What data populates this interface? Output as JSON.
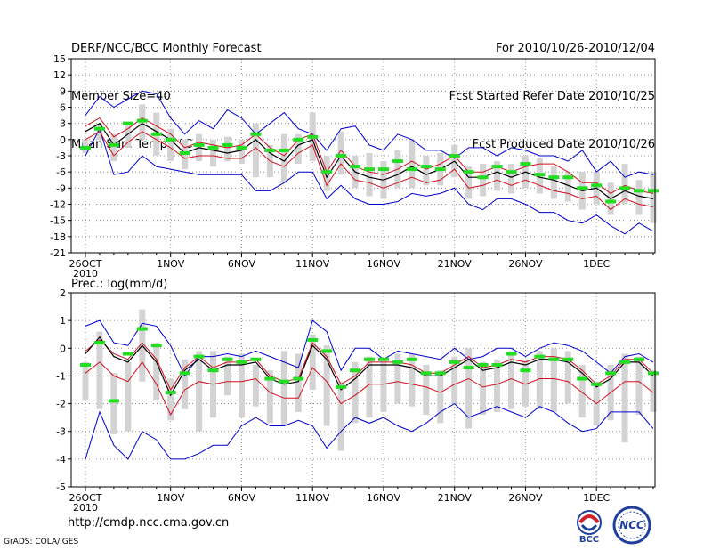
{
  "header": {
    "left": [
      "DERF/NCC/BCC Monthly Forecast",
      "Member Size=40",
      "Mean Surf. Temp.: °C"
    ],
    "right": [
      "For 2010/10/26-2010/12/04",
      "Fcst Started Refer Date 2010/10/25",
      "Fcst Produced Date 2010/10/26"
    ]
  },
  "footer": {
    "url": "http://cmdp.ncc.cma.gov.cn",
    "credit": "GrADS: COLA/IGES",
    "logo_bcc": "BCC",
    "logo_ncc": "NCC"
  },
  "colors": {
    "ensemble_range": "#0000cc",
    "mean": "#000000",
    "spread": "#d01020",
    "box": "#d3d3d3",
    "median": "#22dd22",
    "grid": "#777777"
  },
  "chart_data": [
    {
      "type": "line",
      "title": "Mean Surf. Temp.: °C",
      "x_day_count": 40,
      "xtick_days": [
        0,
        6,
        11,
        16,
        21,
        26,
        31,
        36
      ],
      "xtick_labels": [
        "26OCT",
        "1NOV",
        "6NOV",
        "11NOV",
        "16NOV",
        "21NOV",
        "26NOV",
        "1DEC"
      ],
      "xtick_sublabel": "2010",
      "ylim": [
        -21,
        15
      ],
      "yticks": [
        -21,
        -18,
        -15,
        -12,
        -9,
        -6,
        -3,
        0,
        3,
        6,
        9,
        12,
        15
      ],
      "series": {
        "max": [
          4.5,
          8,
          6,
          7.5,
          9,
          8.5,
          4,
          1,
          3.5,
          2,
          5.5,
          4,
          1,
          3,
          5,
          2,
          1,
          -2,
          2,
          2.5,
          -1,
          -2,
          1,
          0,
          -2,
          -2,
          -3.5,
          -1.5,
          -1.5,
          -3,
          -1.5,
          -2,
          -3,
          -3,
          -4,
          -2,
          -6,
          -4,
          -7,
          -6,
          -6.5
        ],
        "mean": [
          1.5,
          3,
          -1,
          1,
          3,
          1.5,
          0,
          -2.5,
          -1.5,
          -2,
          -2.5,
          -2,
          0,
          -2.5,
          -4,
          -1,
          0,
          -7,
          -3,
          -6,
          -7,
          -7.5,
          -6.5,
          -5,
          -6.5,
          -5.5,
          -4,
          -7,
          -7,
          -6,
          -7,
          -6,
          -7,
          -7.5,
          -8.5,
          -9.5,
          -9,
          -11,
          -9.5,
          -10.5,
          -11
        ],
        "upper": [
          2.5,
          4,
          0.5,
          2,
          4,
          2.5,
          1,
          -1.5,
          -0.5,
          -1,
          -1.5,
          -1,
          1,
          -1.5,
          -3,
          0,
          1,
          -6,
          -2,
          -5,
          -6,
          -6.5,
          -5.5,
          -4,
          -5.5,
          -4.5,
          -3,
          -6,
          -6,
          -5,
          -6,
          -5,
          -4.5,
          -4.5,
          -6,
          -8,
          -8,
          -10,
          -8.5,
          -9.5,
          -10
        ],
        "lower": [
          0,
          1.5,
          -3,
          -0.5,
          1.5,
          0,
          -1.5,
          -3.5,
          -3,
          -3,
          -3.5,
          -3.5,
          -1.5,
          -4,
          -5,
          -2.5,
          -1,
          -8.5,
          -4.5,
          -7.5,
          -8,
          -9,
          -8,
          -7,
          -8,
          -7.5,
          -5.5,
          -9,
          -8.5,
          -7.5,
          -8.5,
          -7.5,
          -8.5,
          -9.5,
          -10,
          -11,
          -10.5,
          -13,
          -11,
          -12,
          -12.5
        ],
        "min": [
          -3,
          2,
          -6.5,
          -6,
          -3,
          -5,
          -5.5,
          -6,
          -6.5,
          -6.5,
          -6.5,
          -6.5,
          -9.5,
          -9.5,
          -8,
          -6,
          -6,
          -11,
          -8.5,
          -11,
          -12,
          -12,
          -11.5,
          -10,
          -10.5,
          -10,
          -9,
          -12,
          -13,
          -11,
          -11,
          -12,
          -13.5,
          -13.5,
          -15,
          -15.5,
          -14,
          -16,
          -17.5,
          -15.5,
          -17
        ],
        "box_high": [
          0,
          3,
          1,
          3,
          6.5,
          5,
          2,
          0,
          1,
          0,
          0.5,
          0,
          3,
          -1,
          1,
          1,
          5,
          -3,
          1.5,
          -3,
          -2.5,
          -4,
          -2,
          0,
          -3,
          -2.5,
          -1,
          -5,
          -4.5,
          -4,
          -4.5,
          -3,
          -3.5,
          -5,
          -6,
          -6,
          -6,
          -8,
          -4.5,
          -7.5,
          -6
        ],
        "box_low": [
          -2.5,
          0,
          -4,
          -1.5,
          0,
          -3,
          -4,
          -5.5,
          -4,
          -5,
          -4,
          -4.5,
          -7,
          -7,
          -8,
          -4.5,
          -4,
          -9.5,
          -6.5,
          -9,
          -10.5,
          -11,
          -9,
          -9,
          -8.5,
          -8.5,
          -7,
          -11,
          -10.5,
          -9.5,
          -10,
          -9,
          -10,
          -11,
          -11.5,
          -13,
          -12,
          -14,
          -12,
          -14,
          -15.5
        ],
        "median": [
          -1.5,
          2,
          -1,
          3,
          3.5,
          1,
          0,
          -2.5,
          -1,
          -1.5,
          -1,
          -1.5,
          1,
          -2,
          -2,
          0,
          0.5,
          -6,
          -3,
          -5,
          -5.5,
          -5.5,
          -4,
          -5.5,
          -5,
          -5.5,
          -3,
          -6,
          -7,
          -5,
          -6,
          -4.5,
          -6.5,
          -7,
          -7,
          -9,
          -8.5,
          -11.5,
          -9,
          -9.5,
          -9.5
        ]
      }
    },
    {
      "type": "line",
      "title": "Prec.: log(mm/d)",
      "x_day_count": 40,
      "xtick_days": [
        0,
        6,
        11,
        16,
        21,
        26,
        31,
        36
      ],
      "xtick_labels": [
        "26OCT",
        "1NOV",
        "6NOV",
        "11NOV",
        "16NOV",
        "21NOV",
        "26NOV",
        "1DEC"
      ],
      "xtick_sublabel": "2010",
      "ylim": [
        -5,
        2
      ],
      "yticks": [
        -5,
        -4,
        -3,
        -2,
        -1,
        0,
        1,
        2
      ],
      "series": {
        "max": [
          0.8,
          1,
          0.2,
          0.1,
          0.9,
          0.8,
          0.1,
          -1,
          -0.3,
          -0.3,
          -0.2,
          -0.3,
          -0.1,
          -0.3,
          -0.5,
          -0.7,
          1,
          0.6,
          -0.8,
          0,
          0,
          -0.4,
          -0.1,
          -0.2,
          -0.3,
          -0.4,
          0,
          -0.4,
          -0.3,
          0,
          0,
          -0.3,
          0,
          0.2,
          0.1,
          -0.1,
          -0.5,
          -0.9,
          -0.3,
          -0.2,
          -0.5
        ],
        "mean": [
          -0.2,
          0.4,
          -0.3,
          -0.5,
          0.1,
          -0.5,
          -1.7,
          -0.8,
          -0.4,
          -0.8,
          -0.6,
          -0.6,
          -0.5,
          -1.1,
          -1.3,
          -1.2,
          0.1,
          -0.4,
          -1.5,
          -1.1,
          -0.6,
          -0.6,
          -0.6,
          -0.7,
          -1,
          -1,
          -0.7,
          -0.4,
          -0.8,
          -0.7,
          -0.5,
          -0.6,
          -0.4,
          -0.4,
          -0.5,
          -0.9,
          -1.4,
          -1.1,
          -0.5,
          -0.5,
          -1
        ],
        "upper": [
          -0.1,
          0.3,
          -0.2,
          -0.4,
          0.2,
          -0.4,
          -1.5,
          -0.7,
          -0.3,
          -0.7,
          -0.5,
          -0.5,
          -0.4,
          -1,
          -1.2,
          -1.1,
          0.2,
          -0.3,
          -1.3,
          -1,
          -0.5,
          -0.5,
          -0.5,
          -0.6,
          -0.9,
          -0.9,
          -0.6,
          -0.3,
          -0.7,
          -0.6,
          -0.4,
          -0.5,
          -0.3,
          -0.3,
          -0.4,
          -0.8,
          -1.3,
          -1,
          -0.4,
          -0.4,
          -0.9
        ],
        "lower": [
          -0.9,
          -0.5,
          -1,
          -1.2,
          -0.5,
          -1.3,
          -2.4,
          -1.5,
          -1.2,
          -1.3,
          -1.2,
          -1.2,
          -1.1,
          -1.6,
          -1.8,
          -1.8,
          -0.7,
          -1.2,
          -2,
          -1.7,
          -1.3,
          -1.3,
          -1.2,
          -1.3,
          -1.4,
          -1.6,
          -1.3,
          -1.1,
          -1.4,
          -1.3,
          -1.1,
          -1.3,
          -1.1,
          -1.1,
          -1.2,
          -1.6,
          -2,
          -1.6,
          -1.2,
          -1.2,
          -1.6
        ],
        "min": [
          -4,
          -2.3,
          -3.5,
          -4,
          -3,
          -3.3,
          -4,
          -4,
          -3.8,
          -3.5,
          -3.5,
          -2.8,
          -2.5,
          -2.8,
          -2.8,
          -2.6,
          -2.8,
          -3.6,
          -3,
          -2.5,
          -2.7,
          -2.5,
          -2.8,
          -3,
          -2.7,
          -2.3,
          -2,
          -2.5,
          -2.3,
          -2.1,
          -2.3,
          -2.5,
          -2.1,
          -2.3,
          -2.7,
          -3,
          -2.9,
          -2.3,
          -2.3,
          -2.3,
          -2.9
        ],
        "box_high": [
          -0.5,
          0.6,
          -0.9,
          -0.5,
          1.4,
          0.2,
          -1.1,
          -0.4,
          -0.1,
          -0.1,
          -0.3,
          -0.2,
          -0.6,
          -0.8,
          -0.1,
          -0.2,
          0.5,
          0.1,
          -1.2,
          -0.5,
          -0.3,
          -0.4,
          -0.2,
          -0.2,
          -0.6,
          -0.8,
          -0.3,
          0,
          -0.5,
          -0.4,
          -0.1,
          -0.4,
          -0.1,
          0,
          -0.1,
          -0.6,
          -1.2,
          -0.6,
          -0.2,
          -0.3,
          -0.8
        ],
        "box_low": [
          -1.9,
          -2.2,
          -3.1,
          -3,
          -1.2,
          -1.9,
          -2.6,
          -2.2,
          -3,
          -2.5,
          -1.7,
          -2.5,
          -2.1,
          -2.7,
          -2.8,
          -2.3,
          -1.5,
          -2.8,
          -3.7,
          -2.7,
          -2.5,
          -2.3,
          -2,
          -2.1,
          -2.4,
          -2.7,
          -2,
          -2.9,
          -2.4,
          -2.3,
          -2.2,
          -2.1,
          -2.2,
          -2.3,
          -2,
          -2.5,
          -2.8,
          -2.6,
          -3.4,
          -2.4,
          -2.3
        ],
        "median": [
          -0.6,
          0.2,
          -1.9,
          -0.2,
          0.7,
          0.1,
          -1.6,
          -0.9,
          -0.3,
          -0.8,
          -0.4,
          -0.5,
          -0.4,
          -1.1,
          -1.2,
          -1.1,
          0.3,
          -0.1,
          -1.4,
          -0.8,
          -0.4,
          -0.4,
          -0.5,
          -0.4,
          -0.9,
          -0.9,
          -0.5,
          -0.7,
          -0.6,
          -0.6,
          -0.2,
          -0.8,
          -0.3,
          -0.4,
          -0.4,
          -1.1,
          -1.3,
          -0.9,
          -0.5,
          -0.4,
          -0.9
        ]
      }
    }
  ]
}
